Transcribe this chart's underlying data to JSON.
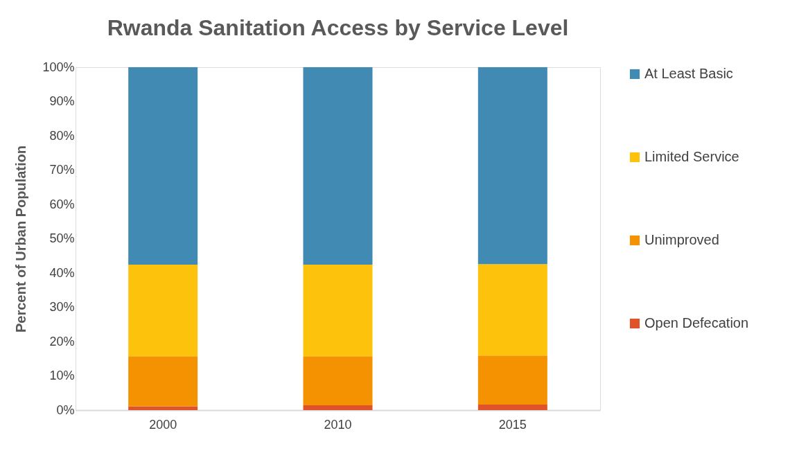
{
  "chart_data": {
    "type": "bar",
    "stacked": true,
    "title": "Rwanda Sanitation Access by Service Level",
    "ylabel": "Percent of Urban Population",
    "categories": [
      "2000",
      "2010",
      "2015"
    ],
    "series": [
      {
        "name": "Open Defecation",
        "color": "#e0522a",
        "values": [
          1.1,
          1.4,
          1.6
        ]
      },
      {
        "name": "Unimproved",
        "color": "#f59202",
        "values": [
          14.6,
          14.3,
          14.3
        ]
      },
      {
        "name": "Limited Service",
        "color": "#fdc20c",
        "values": [
          26.7,
          26.7,
          26.7
        ]
      },
      {
        "name": "At Least Basic",
        "color": "#418ab3",
        "values": [
          57.6,
          57.6,
          57.4
        ]
      }
    ],
    "ylim": [
      0,
      100
    ],
    "yticks": [
      {
        "value": 0,
        "label": "0%"
      },
      {
        "value": 10,
        "label": "10%"
      },
      {
        "value": 20,
        "label": "20%"
      },
      {
        "value": 30,
        "label": "30%"
      },
      {
        "value": 40,
        "label": "40%"
      },
      {
        "value": 50,
        "label": "50%"
      },
      {
        "value": 60,
        "label": "60%"
      },
      {
        "value": 70,
        "label": "70%"
      },
      {
        "value": 80,
        "label": "80%"
      },
      {
        "value": 90,
        "label": "90%"
      },
      {
        "value": 100,
        "label": "100%"
      }
    ],
    "grid": false,
    "legend": "right"
  }
}
